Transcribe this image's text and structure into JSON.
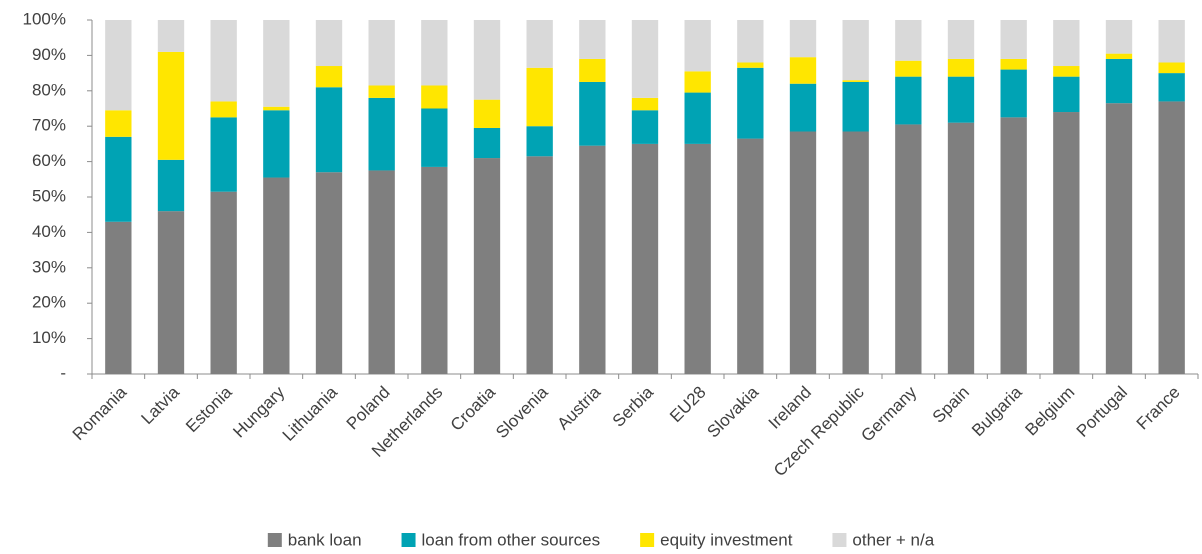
{
  "chart_data": {
    "type": "stacked_bar",
    "categories": [
      "Romania",
      "Latvia",
      "Estonia",
      "Hungary",
      "Lithuania",
      "Poland",
      "Netherlands",
      "Croatia",
      "Slovenia",
      "Austria",
      "Serbia",
      "EU28",
      "Slovakia",
      "Ireland",
      "Czech Republic",
      "Germany",
      "Spain",
      "Bulgaria",
      "Belgium",
      "Portugal",
      "France"
    ],
    "series": [
      {
        "name": "bank loan",
        "color": "#7f7f7f",
        "values": [
          43,
          46,
          51.5,
          55.5,
          57,
          57.5,
          58.5,
          61,
          61.5,
          64.5,
          65,
          65,
          66.5,
          68.5,
          68.5,
          70.5,
          71,
          72.5,
          74,
          76.5,
          77
        ]
      },
      {
        "name": "loan from other sources",
        "color": "#00a3b4",
        "values": [
          24,
          14.5,
          21,
          19,
          24,
          20.5,
          16.5,
          8.5,
          8.5,
          18,
          9.5,
          14.5,
          20,
          13.5,
          14,
          13.5,
          13,
          13.5,
          10,
          12.5,
          8
        ]
      },
      {
        "name": "equity investment",
        "color": "#ffe600",
        "values": [
          7.5,
          30.5,
          4.5,
          1,
          6,
          3.5,
          6.5,
          8,
          16.5,
          6.5,
          3.5,
          6,
          1.5,
          7.5,
          0.5,
          4.5,
          5,
          3,
          3,
          1.5,
          3
        ]
      },
      {
        "name": "other + n/a",
        "color": "#d9d9d9",
        "values": [
          25.5,
          9,
          23,
          24.5,
          13,
          18.5,
          18.5,
          22.5,
          13.5,
          11,
          22,
          14.5,
          12,
          10.5,
          17,
          11.5,
          11,
          11,
          13,
          9.5,
          12
        ]
      }
    ],
    "ylim": [
      0,
      100
    ],
    "yticks": [
      {
        "value": 0,
        "label": "-"
      },
      {
        "value": 10,
        "label": "10%"
      },
      {
        "value": 20,
        "label": "20%"
      },
      {
        "value": 30,
        "label": "30%"
      },
      {
        "value": 40,
        "label": "40%"
      },
      {
        "value": 50,
        "label": "50%"
      },
      {
        "value": 60,
        "label": "60%"
      },
      {
        "value": 70,
        "label": "70%"
      },
      {
        "value": 80,
        "label": "80%"
      },
      {
        "value": 90,
        "label": "90%"
      },
      {
        "value": 100,
        "label": "100%"
      }
    ],
    "grid": false,
    "legend": "bottom"
  }
}
